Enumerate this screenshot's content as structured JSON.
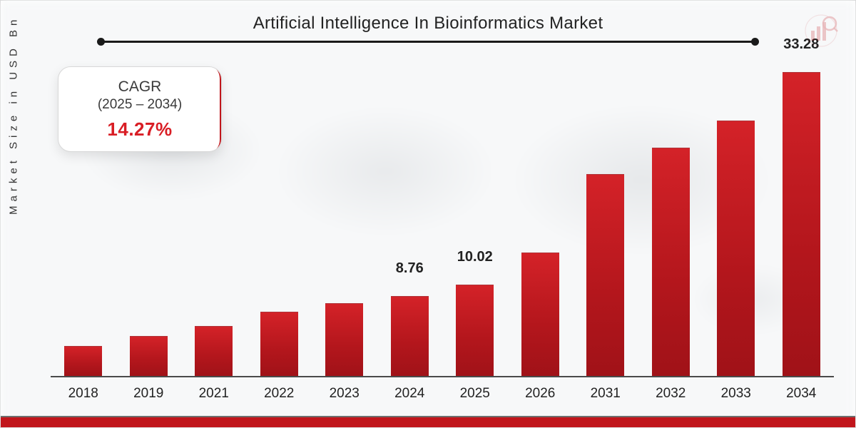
{
  "title": "Artificial Intelligence  In  Bioinformatics Market",
  "y_axis_label": "Market Size in USD Bn",
  "cagr": {
    "line1": "CAGR",
    "line2": "(2025 – 2034)",
    "value": "14.27%"
  },
  "chart": {
    "type": "bar",
    "categories": [
      "2018",
      "2019",
      "2021",
      "2022",
      "2023",
      "2024",
      "2025",
      "2026",
      "2031",
      "2032",
      "2033",
      "2034"
    ],
    "values": [
      3.3,
      4.4,
      5.5,
      7.0,
      8.0,
      8.76,
      10.02,
      13.5,
      22.1,
      25.0,
      28.0,
      33.28
    ],
    "value_labels": {
      "5": "8.76",
      "6": "10.02",
      "11": "33.28"
    },
    "bar_color": "#c1151b",
    "bar_width_ratio": 0.58,
    "y_max": 35,
    "axis_color": "#4a4a4a",
    "background_color": "#f7f8f9",
    "category_fontsize": 19,
    "value_label_fontsize": 20,
    "title_fontsize": 24
  },
  "footer": {
    "bar_color": "#c1151b",
    "sep_color": "#6e6e6e"
  },
  "logo": {
    "stroke": "#c1151b"
  }
}
